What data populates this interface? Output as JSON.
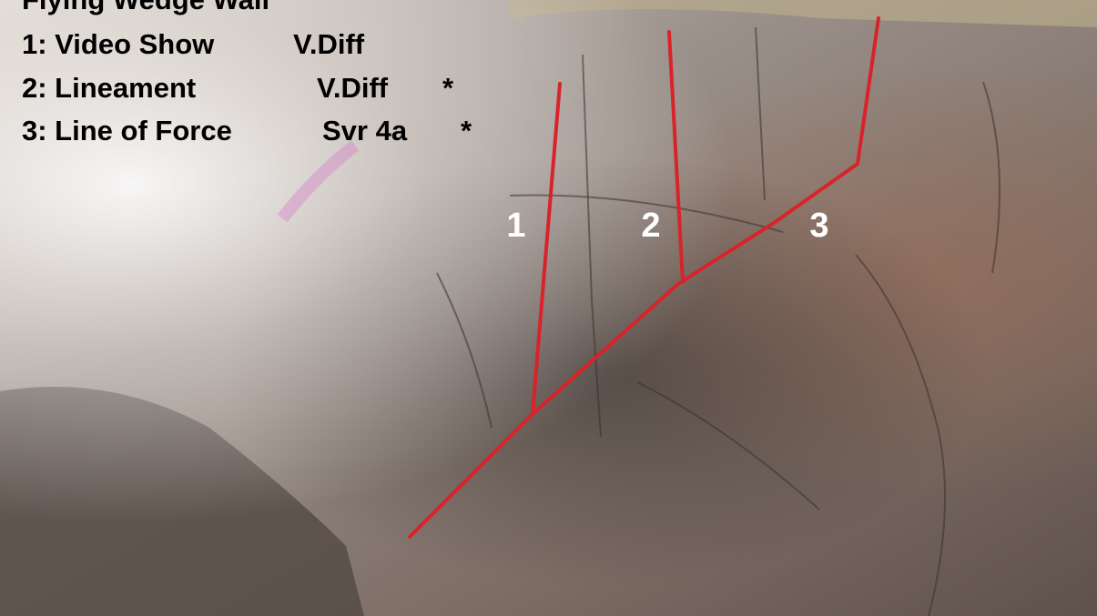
{
  "title": "Flying Wedge Wall",
  "routes": [
    {
      "label": "1: Video Show",
      "grade": "V.Diff"
    },
    {
      "label": "2: Lineament",
      "grade": "V.Diff",
      "stars": "*"
    },
    {
      "label": "3: Line of Force",
      "grade": "Svr 4a",
      "stars": "*"
    }
  ],
  "line_labels": [
    "1",
    "2",
    "3"
  ]
}
